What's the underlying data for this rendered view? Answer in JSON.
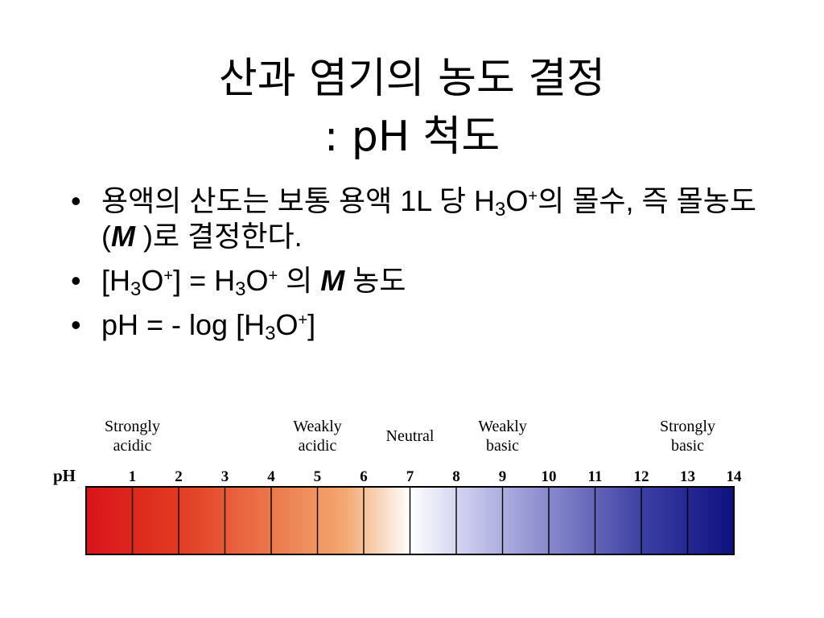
{
  "slide": {
    "title_line1": "산과 염기의 농도 결정",
    "title_line2": ": pH 척도"
  },
  "bullets": {
    "marker": "•",
    "b1": {
      "t1": "용액의 산도는 보통 용액 1L 당 H",
      "sub1": "3",
      "t2": "O",
      "sup1": "+",
      "t3": "의 몰수, 즉 몰농도(",
      "m": "M",
      "t4": " )로 결정한다."
    },
    "b2": {
      "t1": "[H",
      "sub1": "3",
      "t2": "O",
      "sup1": "+",
      "t3": "] = H",
      "sub2": "3",
      "t4": "O",
      "sup2": "+",
      "t5": " 의 ",
      "m": "M",
      "t6": " 농도"
    },
    "b3": {
      "t1": "pH = - log [H",
      "sub1": "3",
      "t2": "O",
      "sup1": "+",
      "t3": "]"
    }
  },
  "ph_scale": {
    "axis_label": "pH",
    "min": 0,
    "max": 14,
    "ticks": [
      "1",
      "2",
      "3",
      "4",
      "5",
      "6",
      "7",
      "8",
      "9",
      "10",
      "11",
      "12",
      "13",
      "14"
    ],
    "categories": [
      {
        "label1": "Strongly",
        "label2": "acidic",
        "at": 1
      },
      {
        "label1": "Weakly",
        "label2": "acidic",
        "at": 5
      },
      {
        "label1": "Neutral",
        "label2": "",
        "at": 7
      },
      {
        "label1": "Weakly",
        "label2": "basic",
        "at": 9
      },
      {
        "label1": "Strongly",
        "label2": "basic",
        "at": 13
      }
    ],
    "colors": {
      "strong_acid": "#d8141c",
      "acid": "#e23a20",
      "weak_acid": "#f2a870",
      "neutral": "#ffffff",
      "weak_base": "#b9b9e6",
      "base": "#3d3fa2",
      "strong_base": "#0e1180"
    }
  }
}
